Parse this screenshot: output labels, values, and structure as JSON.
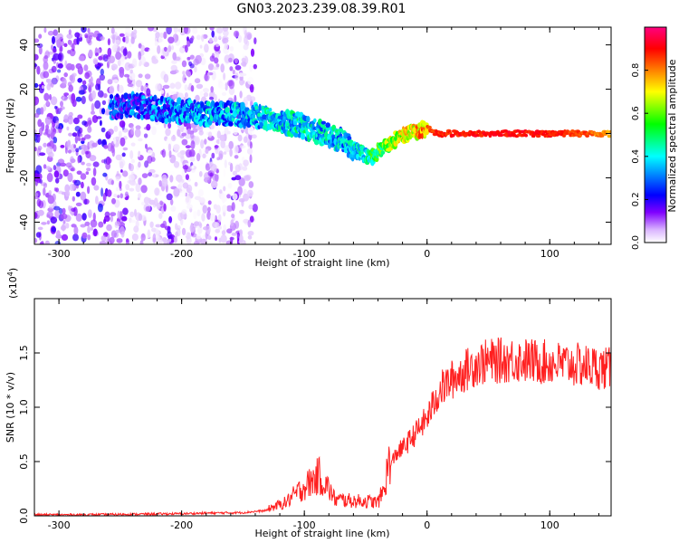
{
  "figure_title": "GN03.2023.239.08.39.R01",
  "chart_data": [
    {
      "type": "heatmap",
      "title": "",
      "xlabel": "Height of straight line (km)",
      "ylabel": "Frequency (Hz)",
      "xlim": [
        -320,
        150
      ],
      "ylim": [
        -50,
        48
      ],
      "x_ticks": [
        -300,
        -200,
        -100,
        0,
        100
      ],
      "y_ticks": [
        -40,
        -20,
        0,
        20,
        40
      ],
      "colorbar": {
        "label": "Normalized spectral amplitude",
        "range": [
          0,
          1
        ],
        "ticks": [
          "0.0",
          "0.2",
          "0.4",
          "0.6",
          "0.8"
        ],
        "colormap": [
          "#ffffff",
          "#d9b3ff",
          "#8000ff",
          "#0000ff",
          "#00ffff",
          "#00ff00",
          "#ffff00",
          "#ff8000",
          "#ff0000",
          "#ff0080"
        ]
      },
      "ridge": {
        "x": [
          -255,
          -240,
          -220,
          -200,
          -180,
          -160,
          -140,
          -120,
          -100,
          -85,
          -70,
          -60,
          -50,
          -45,
          -40,
          -30,
          -20,
          -10,
          0,
          10,
          30,
          60,
          100,
          130,
          150
        ],
        "frequency_hz": [
          12,
          13,
          11,
          10,
          9,
          9,
          8,
          6,
          3,
          0,
          -3,
          -7,
          -10,
          -11,
          -8,
          -4,
          -1,
          1,
          2,
          0,
          0,
          0,
          0,
          0,
          0
        ],
        "amplitude": [
          0.35,
          0.38,
          0.4,
          0.42,
          0.45,
          0.45,
          0.48,
          0.5,
          0.52,
          0.5,
          0.48,
          0.5,
          0.55,
          0.6,
          0.65,
          0.75,
          0.8,
          0.85,
          0.9,
          0.92,
          0.93,
          0.94,
          0.93,
          0.88,
          0.8
        ]
      },
      "noise_region_x": [
        -320,
        -140
      ]
    },
    {
      "type": "line",
      "title": "",
      "xlabel": "Height of straight line (km)",
      "ylabel": "SNR (10 * v/v)",
      "y_multiplier": "(x10",
      "y_multiplier_exp": "4",
      "y_multiplier_close": ")",
      "xlim": [
        -320,
        150
      ],
      "ylim": [
        0,
        2.0
      ],
      "x_ticks": [
        -300,
        -200,
        -100,
        0,
        100
      ],
      "y_ticks": [
        "0.0",
        "0.5",
        "1.0",
        "1.5"
      ],
      "series": [
        {
          "color": "#ff2020",
          "x": [
            -320,
            -280,
            -240,
            -200,
            -180,
            -150,
            -130,
            -115,
            -105,
            -95,
            -88,
            -80,
            -75,
            -70,
            -60,
            -50,
            -40,
            -35,
            -30,
            -25,
            -20,
            -10,
            0,
            10,
            20,
            30,
            40,
            50,
            70,
            90,
            110,
            130,
            150
          ],
          "y": [
            0.01,
            0.01,
            0.015,
            0.02,
            0.025,
            0.03,
            0.05,
            0.1,
            0.18,
            0.25,
            0.3,
            0.2,
            0.12,
            0.12,
            0.11,
            0.11,
            0.1,
            0.2,
            0.45,
            0.58,
            0.62,
            0.75,
            0.9,
            1.15,
            1.25,
            1.33,
            1.4,
            1.42,
            1.44,
            1.42,
            1.4,
            1.38,
            1.35
          ]
        }
      ]
    }
  ]
}
